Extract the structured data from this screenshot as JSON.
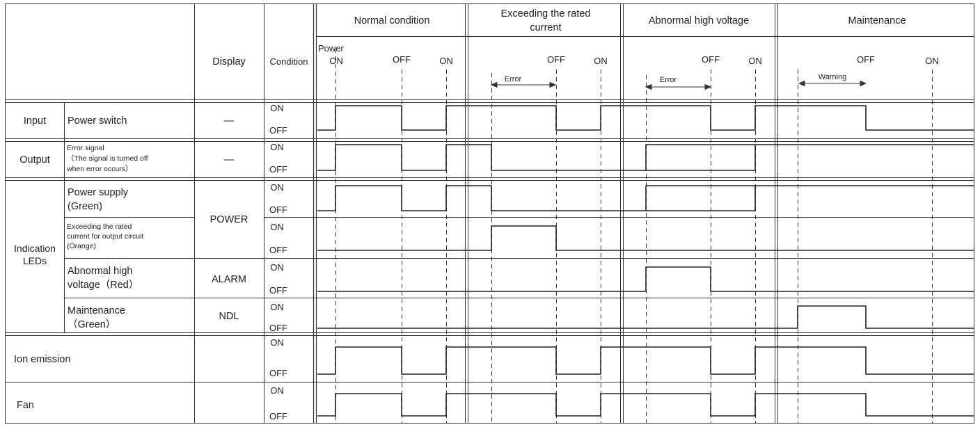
{
  "columns": {
    "display": "Display",
    "condition": "Condition"
  },
  "phases": [
    {
      "title_lines": [
        "Normal condition"
      ]
    },
    {
      "title_lines": [
        "Exceeding the rated",
        "current"
      ]
    },
    {
      "title_lines": [
        "Abnormal high voltage"
      ]
    },
    {
      "title_lines": [
        "Maintenance"
      ]
    }
  ],
  "phase_markers": {
    "normal": {
      "power": "Power",
      "on1": "ON",
      "off": "OFF",
      "on2": "ON"
    },
    "rated": {
      "off": "OFF",
      "on": "ON",
      "span": "Error"
    },
    "voltage": {
      "off": "OFF",
      "on": "ON",
      "span": "Error"
    },
    "maintenance": {
      "off": "OFF",
      "on": "ON",
      "span": "Warning"
    }
  },
  "groups": {
    "input": "Input",
    "output": "Output",
    "indication": [
      "Indication",
      "LEDs"
    ]
  },
  "rows": [
    {
      "id": "power-switch",
      "label_lines": [
        "Power switch"
      ],
      "display": "—",
      "on": "ON",
      "off": "OFF"
    },
    {
      "id": "error-signal",
      "label_lines": [
        "Error signal",
        "（The signal is turned off",
        "when error occurs）"
      ],
      "display": "—",
      "on": "ON",
      "off": "OFF"
    },
    {
      "id": "power-supply",
      "label_lines": [
        "Power supply",
        "(Green)"
      ],
      "display": "POWER",
      "on": "ON",
      "off": "OFF"
    },
    {
      "id": "exceeding-rated",
      "label_lines": [
        "Exceeding the rated",
        "current for output circuit",
        "(Orange)"
      ],
      "display": "",
      "on": "ON",
      "off": "OFF"
    },
    {
      "id": "abnormal-voltage",
      "label_lines": [
        "Abnormal high",
        "voltage（Red）"
      ],
      "display": "ALARM",
      "on": "ON",
      "off": "OFF"
    },
    {
      "id": "maintenance-led",
      "label_lines": [
        "Maintenance",
        "（Green）"
      ],
      "display": "NDL",
      "on": "ON",
      "off": "OFF"
    },
    {
      "id": "ion-emission",
      "label_lines": [
        "Ion emission"
      ],
      "display": "",
      "on": "ON",
      "off": "OFF"
    },
    {
      "id": "fan",
      "label_lines": [
        "Fan"
      ],
      "display": "",
      "on": "ON",
      "off": "OFF"
    }
  ],
  "signals": [
    {
      "id": "power-switch",
      "initial": 0,
      "transitions": [
        [
          "normal_on",
          1
        ],
        [
          "normal_off",
          0
        ],
        [
          "normal_on2",
          1
        ],
        [
          "rated_off",
          0
        ],
        [
          "rated_on",
          1
        ],
        [
          "voltage_off",
          0
        ],
        [
          "voltage_on",
          1
        ],
        [
          "maint_off",
          0
        ]
      ]
    },
    {
      "id": "error-signal",
      "initial": 0,
      "transitions": [
        [
          "normal_on",
          1
        ],
        [
          "normal_off",
          0
        ],
        [
          "normal_on2",
          1
        ],
        [
          "rated_err",
          0
        ],
        [
          "voltage_on",
          1
        ],
        [
          "voltage_err",
          0
        ],
        [
          "voltage_on",
          1
        ]
      ]
    },
    {
      "id": "power-supply",
      "initial": 0,
      "transitions": [
        [
          "normal_on",
          1
        ],
        [
          "normal_off",
          0
        ],
        [
          "normal_on2",
          1
        ],
        [
          "rated_err",
          0
        ],
        [
          "voltage_on",
          1
        ],
        [
          "voltage_err",
          0
        ],
        [
          "voltage_on",
          1
        ]
      ]
    },
    {
      "id": "exceeding-rated",
      "initial": 0,
      "transitions": [
        [
          "rated_err",
          1
        ],
        [
          "rated_off",
          0
        ]
      ]
    },
    {
      "id": "abnormal-voltage",
      "initial": 0,
      "transitions": [
        [
          "voltage_err",
          1
        ],
        [
          "voltage_off",
          0
        ]
      ]
    },
    {
      "id": "maintenance-led",
      "initial": 0,
      "transitions": [
        [
          "maint_warn",
          1
        ],
        [
          "maint_off",
          0
        ]
      ]
    },
    {
      "id": "ion-emission",
      "initial": 0,
      "transitions": [
        [
          "normal_on",
          1
        ],
        [
          "normal_off",
          0
        ],
        [
          "normal_on2",
          1
        ],
        [
          "rated_off",
          0
        ],
        [
          "rated_on",
          1
        ],
        [
          "voltage_off",
          0
        ],
        [
          "voltage_on",
          1
        ],
        [
          "maint_off",
          0
        ]
      ]
    },
    {
      "id": "fan",
      "initial": 0,
      "transitions": [
        [
          "normal_on",
          1
        ],
        [
          "normal_off",
          0
        ],
        [
          "normal_on2",
          1
        ],
        [
          "rated_off",
          0
        ],
        [
          "rated_on",
          1
        ],
        [
          "voltage_off",
          0
        ],
        [
          "voltage_on",
          1
        ],
        [
          "maint_off",
          0
        ]
      ]
    }
  ]
}
